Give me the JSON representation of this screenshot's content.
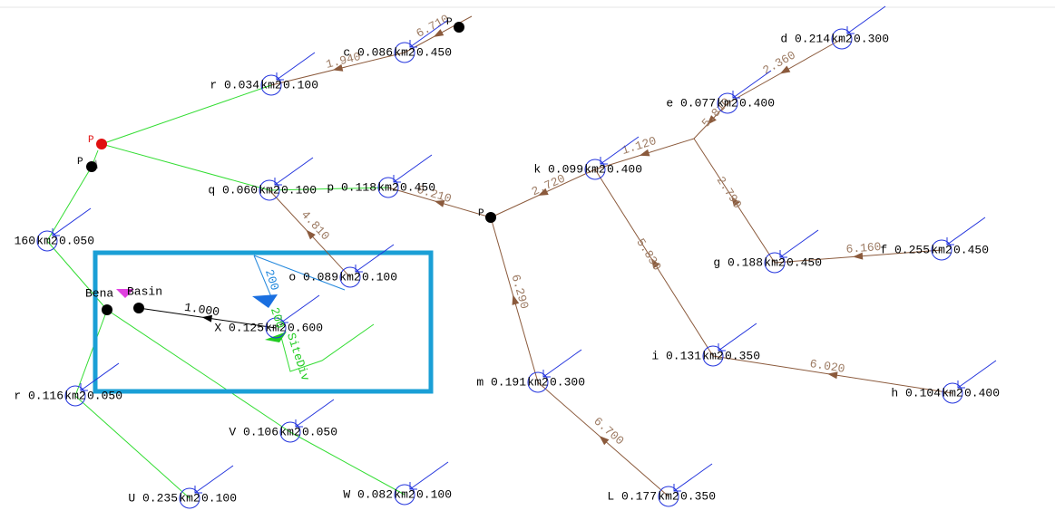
{
  "nodes": [
    {
      "label": "c 0.086",
      "unit": "km2",
      "coef": "0.450"
    },
    {
      "label": "r 0.034",
      "unit": "km2",
      "coef": "0.100"
    },
    {
      "label": "d 0.214",
      "unit": "km2",
      "coef": "0.300"
    },
    {
      "label": "e 0.077",
      "unit": "km2",
      "coef": "0.400"
    },
    {
      "label": "k 0.099",
      "unit": "km2",
      "coef": "0.400"
    },
    {
      "label": "q 0.060",
      "unit": "km2",
      "coef": "0.100"
    },
    {
      "label": "p 0.118",
      "unit": "km2",
      "coef": "0.450"
    },
    {
      "label": "160",
      "unit": "km2",
      "coef": "0.050"
    },
    {
      "label": "o 0.089",
      "unit": "km2",
      "coef": "0.100"
    },
    {
      "label": "g 0.188",
      "unit": "km2",
      "coef": "0.450"
    },
    {
      "label": "f 0.255",
      "unit": "km2",
      "coef": "0.450"
    },
    {
      "label": "X 0.125",
      "unit": "km2",
      "coef": "0.600"
    },
    {
      "label": "i 0.131",
      "unit": "km2",
      "coef": "0.350"
    },
    {
      "label": "m 0.191",
      "unit": "km2",
      "coef": "0.300"
    },
    {
      "label": "h 0.104",
      "unit": "km2",
      "coef": "0.400"
    },
    {
      "label": "r 0.116",
      "unit": "km2",
      "coef": "0.050"
    },
    {
      "label": "V 0.106",
      "unit": "km2",
      "coef": "0.050"
    },
    {
      "label": "U 0.235",
      "unit": "km2",
      "coef": "0.100"
    },
    {
      "label": "W 0.082",
      "unit": "km2",
      "coef": "0.100"
    },
    {
      "label": "L 0.177",
      "unit": "km2",
      "coef": "0.350"
    }
  ],
  "junctions": [
    "P",
    "P",
    "P",
    "P",
    "Bena",
    "Basin"
  ],
  "links": [
    "6.710",
    "1.940",
    "2.360",
    "5.810",
    "1.120",
    "2.720",
    "0.210",
    "4.810",
    "2.790",
    "6.160",
    "5.830",
    "6.290",
    "6.020",
    "6.700",
    "1.000"
  ],
  "diversion": [
    "200",
    "200",
    "SiteDiv"
  ]
}
